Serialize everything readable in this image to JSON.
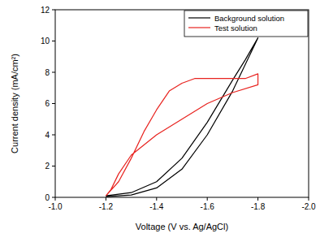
{
  "chart_data": {
    "type": "line",
    "x_label": "Voltage (V vs. Ag/AgCl)",
    "y_label": "Current density (mA/cm²)",
    "xlim": [
      -1.0,
      -2.0
    ],
    "ylim": [
      0,
      12
    ],
    "xticks": [
      {
        "value": -1.0,
        "label": "-1.0"
      },
      -1.2,
      -1.4,
      -1.6,
      -1.8,
      {
        "value": -2.0,
        "label": "-2.0"
      }
    ],
    "yticks": [
      0,
      2,
      4,
      6,
      8,
      10,
      12
    ],
    "grid": false,
    "legend": "upper right",
    "series": [
      {
        "name": "Background solution",
        "color": "#000000",
        "x": [
          -1.2,
          -1.3,
          -1.4,
          -1.5,
          -1.6,
          -1.7,
          -1.8,
          -1.75,
          -1.7,
          -1.6,
          -1.5,
          -1.4,
          -1.3,
          -1.2
        ],
        "values": [
          0.05,
          0.15,
          0.6,
          1.8,
          4.0,
          6.8,
          10.2,
          8.8,
          7.5,
          4.8,
          2.5,
          1.0,
          0.3,
          0.1
        ]
      },
      {
        "name": "Test solution",
        "color": "#e8231f",
        "x": [
          -1.2,
          -1.25,
          -1.3,
          -1.35,
          -1.4,
          -1.45,
          -1.5,
          -1.55,
          -1.6,
          -1.7,
          -1.75,
          -1.8,
          -1.8,
          -1.7,
          -1.6,
          -1.5,
          -1.4,
          -1.3,
          -1.25,
          -1.22,
          -1.2
        ],
        "values": [
          0.1,
          1.0,
          2.5,
          4.2,
          5.6,
          6.8,
          7.3,
          7.6,
          7.6,
          7.6,
          7.6,
          7.9,
          7.2,
          6.7,
          6.0,
          5.0,
          4.0,
          2.7,
          1.5,
          0.5,
          0.1
        ]
      }
    ]
  }
}
